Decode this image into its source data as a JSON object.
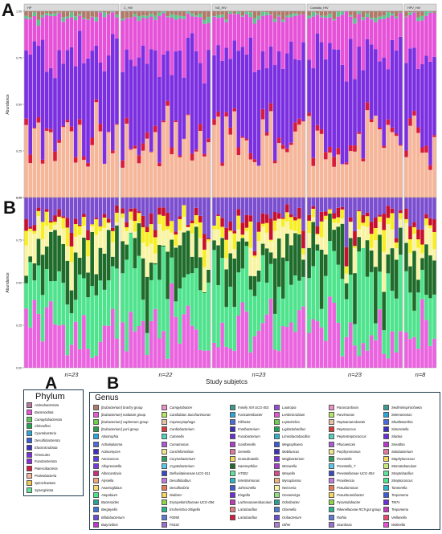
{
  "panel_labels": {
    "a": "A",
    "b": "B",
    "c": "A",
    "d": "B"
  },
  "chart_data": [
    {
      "id": "A",
      "type": "bar",
      "stacked": true,
      "ylabel": "Abundance",
      "yticks": [
        "0.00",
        "0.25",
        "0.50",
        "0.75",
        "1.00"
      ],
      "ylim": [
        0,
        1
      ],
      "facets": [
        "HP",
        "C_HIV",
        "ND_HIV",
        "Candida_HIV",
        "HPV_HIV"
      ],
      "bars_per_facet": [
        23,
        22,
        23,
        23,
        8
      ],
      "series": [
        {
          "name": "Firmicutes",
          "color": "#f5b69a"
        },
        {
          "name": "Fusobacteria",
          "color": "#d81b3c"
        },
        {
          "name": "Proteobacteria",
          "color": "#7b2fe0"
        },
        {
          "name": "Bacteroidota",
          "color": "#e552d8"
        },
        {
          "name": "Spirochaetota",
          "color": "#5fc38f"
        },
        {
          "name": "Actinobacteria",
          "color": "#b07a6a"
        }
      ]
    },
    {
      "id": "B",
      "type": "bar",
      "stacked": true,
      "ylabel": "Abundance",
      "yticks": [
        "0.00",
        "0.25",
        "0.50",
        "0.75",
        "1.00"
      ],
      "ylim": [
        0,
        1
      ],
      "facets": [
        "HP",
        "C_HIV",
        "ND_HIV",
        "Candida_HIV",
        "HPV_HIV"
      ],
      "bars_per_facet": [
        23,
        22,
        23,
        23,
        8
      ],
      "xlabel": "Study subjetcs",
      "n_labels": [
        "n=23",
        "n=22",
        "n=23",
        "n=23",
        "n=8"
      ],
      "series": [
        {
          "name": "Prevotella",
          "color": "#ea63df"
        },
        {
          "name": "Streptococcus",
          "color": "#4fe38d"
        },
        {
          "name": "Haemophilus",
          "color": "#1f6b2a"
        },
        {
          "name": "Neisseria",
          "color": "#f8f4a4"
        },
        {
          "name": "Fusobacterium",
          "color": "#f8ee25"
        },
        {
          "name": "Veillonella",
          "color": "#c8102e"
        },
        {
          "name": "Other",
          "color": "#7b4ed0"
        }
      ]
    }
  ],
  "phylum_legend": {
    "title": "Phylum",
    "items": [
      {
        "label": "Actinobacteriota",
        "color": "#b5799a"
      },
      {
        "label": "Bacteroidota",
        "color": "#e552d8"
      },
      {
        "label": "Campylobacterota",
        "color": "#59c957"
      },
      {
        "label": "Chloroflexi",
        "color": "#1fa650"
      },
      {
        "label": "Cyanobacteria",
        "color": "#2aa7d8"
      },
      {
        "label": "Desulfobacterota",
        "color": "#3a5bd9"
      },
      {
        "label": "Elusimicrobiota",
        "color": "#3b2fbf"
      },
      {
        "label": "Firmicutes",
        "color": "#7b2fe0"
      },
      {
        "label": "Fusobacteriota",
        "color": "#8a2be2"
      },
      {
        "label": "Patescibacteria",
        "color": "#d81b3c"
      },
      {
        "label": "Proteobacteria",
        "color": "#f5b69a"
      },
      {
        "label": "Spirochaetota",
        "color": "#f0c850"
      },
      {
        "label": "Synergistota",
        "color": "#5fe39c"
      }
    ]
  },
  "genus_legend": {
    "title": "Genus",
    "columns": [
      [
        {
          "label": "[Eubacterium] brachy group",
          "color": "#b07a6a"
        },
        {
          "label": "[Eubacterium] nodatum group",
          "color": "#e55bd6"
        },
        {
          "label": "[Eubacterium] saphenum group",
          "color": "#6bd04c"
        },
        {
          "label": "[Eubacterium] yurii group",
          "color": "#2b9e4a"
        },
        {
          "label": "Abiotrophia",
          "color": "#2aa7d8"
        },
        {
          "label": "Acholeplasma",
          "color": "#4a6bd8"
        },
        {
          "label": "Actinomyces",
          "color": "#3f2fbf"
        },
        {
          "label": "Aerococcus",
          "color": "#5d3fd6"
        },
        {
          "label": "Alloprevotella",
          "color": "#7a3ad9"
        },
        {
          "label": "Alloscardovia",
          "color": "#c6327a"
        },
        {
          "label": "Alysiella",
          "color": "#f2a77c"
        },
        {
          "label": "Anaeroglobus",
          "color": "#f3dc6c"
        },
        {
          "label": "Atopobium",
          "color": "#4fe38d"
        },
        {
          "label": "Bacteroides",
          "color": "#2aa197"
        },
        {
          "label": "Bergeyella",
          "color": "#3d76d1"
        },
        {
          "label": "Bifidobacterium",
          "color": "#6a4bd6"
        },
        {
          "label": "Butyrivibrio",
          "color": "#b93ac9"
        }
      ],
      [
        {
          "label": "Campylobacter",
          "color": "#ef8fc8"
        },
        {
          "label": "Candidatus Saccharimonas",
          "color": "#b7e75c"
        },
        {
          "label": "Capnocytophaga",
          "color": "#e6c1a5"
        },
        {
          "label": "Cardiobacterium",
          "color": "#d93b3b"
        },
        {
          "label": "Catonella",
          "color": "#4fd3b8"
        },
        {
          "label": "Comamonas",
          "color": "#a85ad6"
        },
        {
          "label": "Conchiformibius",
          "color": "#f2e48a"
        },
        {
          "label": "Corynebacterium",
          "color": "#2f9e5b"
        },
        {
          "label": "Cryptobacterium",
          "color": "#5ac8e8"
        },
        {
          "label": "Defluviitaleaceae UCG-011",
          "color": "#3a4bbf"
        },
        {
          "label": "Desulfobulbus",
          "color": "#c07ae0"
        },
        {
          "label": "Desulfovibrio",
          "color": "#e57a5a"
        },
        {
          "label": "Dialister",
          "color": "#f5d55c"
        },
        {
          "label": "Erysipelotrichaceae UCG-006",
          "color": "#8fd64c"
        },
        {
          "label": "Escherichia-Shigella",
          "color": "#2ab58f"
        },
        {
          "label": "F0058",
          "color": "#5f7ad6"
        },
        {
          "label": "F0332",
          "color": "#9a6fd0"
        }
      ],
      [
        {
          "label": "Family XIII UCG-001",
          "color": "#3b9b8f"
        },
        {
          "label": "Fusicatenibacter",
          "color": "#2aa7d8"
        },
        {
          "label": "Filifactor",
          "color": "#4a6bd8"
        },
        {
          "label": "Fretibacterium",
          "color": "#3a2fbf"
        },
        {
          "label": "Fusobacterium",
          "color": "#6a2fd6"
        },
        {
          "label": "Gardnerella",
          "color": "#b43ac9"
        },
        {
          "label": "Gemella",
          "color": "#e07a9a"
        },
        {
          "label": "Granulicatella",
          "color": "#f3d45c"
        },
        {
          "label": "Haemophilus",
          "color": "#1f6b2a"
        },
        {
          "label": "HT002",
          "color": "#5fe39c"
        },
        {
          "label": "Intestinimonas",
          "color": "#2ab5c8"
        },
        {
          "label": "Johnsonella",
          "color": "#3f5bd1"
        },
        {
          "label": "Kingella",
          "color": "#6e2fd9"
        },
        {
          "label": "Lachnoanaerobaculum",
          "color": "#c03ab9"
        },
        {
          "label": "Lactobacillus",
          "color": "#e87f7f"
        },
        {
          "label": "Lactobacillus",
          "color": "#d81b3c"
        }
      ],
      [
        {
          "label": "Lautropia",
          "color": "#9a4bd6"
        },
        {
          "label": "Lentimicrobium",
          "color": "#e552d8"
        },
        {
          "label": "Leptotrichia",
          "color": "#6bd04c"
        },
        {
          "label": "Ligilactobacillus",
          "color": "#1fa650"
        },
        {
          "label": "Limosilactobacillus",
          "color": "#2ab5c8"
        },
        {
          "label": "Megasphaera",
          "color": "#3a5bd9"
        },
        {
          "label": "Mobiluncus",
          "color": "#3b2fbf"
        },
        {
          "label": "Mogibacterium",
          "color": "#7b2fe0"
        },
        {
          "label": "Moraxella",
          "color": "#a83ad0"
        },
        {
          "label": "Moryella",
          "color": "#d84a8a"
        },
        {
          "label": "Mycoplasma",
          "color": "#f2b07a"
        },
        {
          "label": "Neisseria",
          "color": "#f8f4a4"
        },
        {
          "label": "Oceanivirga",
          "color": "#8fe07a"
        },
        {
          "label": "Odoribacter",
          "color": "#2aa197"
        },
        {
          "label": "Olsenella",
          "color": "#4a7ad8"
        },
        {
          "label": "Oribacterium",
          "color": "#6a4bd6"
        },
        {
          "label": "Other",
          "color": "#b07ad0"
        }
      ],
      [
        {
          "label": "Parascardovia",
          "color": "#ef8fc8"
        },
        {
          "label": "Parvimonas",
          "color": "#b7e75c"
        },
        {
          "label": "Peptoanaerobacter",
          "color": "#e6c1a5"
        },
        {
          "label": "Peptococcus",
          "color": "#d93b3b"
        },
        {
          "label": "Peptostreptococcus",
          "color": "#4fd3b8"
        },
        {
          "label": "Phocaeicola",
          "color": "#a85ad6"
        },
        {
          "label": "Porphyromonas",
          "color": "#f2e48a"
        },
        {
          "label": "Prevotella",
          "color": "#2f9e5b"
        },
        {
          "label": "Prevotella_7",
          "color": "#5ac8e8"
        },
        {
          "label": "Prevotellaceae UCG-004",
          "color": "#3a4bbf"
        },
        {
          "label": "Providencia",
          "color": "#c07ae0"
        },
        {
          "label": "Pseudomonas",
          "color": "#e57a5a"
        },
        {
          "label": "Pseudoramibacter",
          "color": "#f5d55c"
        },
        {
          "label": "Pyramidobacter",
          "color": "#8fd64c"
        },
        {
          "label": "Rikenellaceae RC9 gut group",
          "color": "#2ab58f"
        },
        {
          "label": "Rothia",
          "color": "#5f7ad6"
        },
        {
          "label": "Scardovia",
          "color": "#9a6fd0"
        }
      ],
      [
        {
          "label": "Sediminispirochaeta",
          "color": "#3b9b8f"
        },
        {
          "label": "Selenomonas",
          "color": "#2aa7d8"
        },
        {
          "label": "Shuttleworthia",
          "color": "#4a6bd8"
        },
        {
          "label": "Simonsiella",
          "color": "#3a2fbf"
        },
        {
          "label": "Slackia",
          "color": "#6a2fd6"
        },
        {
          "label": "Sneathia",
          "color": "#b43ac9"
        },
        {
          "label": "Solobacterium",
          "color": "#e07a9a"
        },
        {
          "label": "Staphylococcus",
          "color": "#f3d45c"
        },
        {
          "label": "Stomatobaculum",
          "color": "#c8e87a"
        },
        {
          "label": "Streptobacillus",
          "color": "#5fe39c"
        },
        {
          "label": "Streptococcus",
          "color": "#4fe38d"
        },
        {
          "label": "Tannerella",
          "color": "#2ab5c8"
        },
        {
          "label": "Treponema",
          "color": "#3f5bd1"
        },
        {
          "label": "TM7x",
          "color": "#6e2fd9"
        },
        {
          "label": "Treponema",
          "color": "#c03ab9"
        },
        {
          "label": "Veillonella",
          "color": "#e84a6a"
        },
        {
          "label": "Wolinella",
          "color": "#e552d8"
        }
      ]
    ]
  }
}
